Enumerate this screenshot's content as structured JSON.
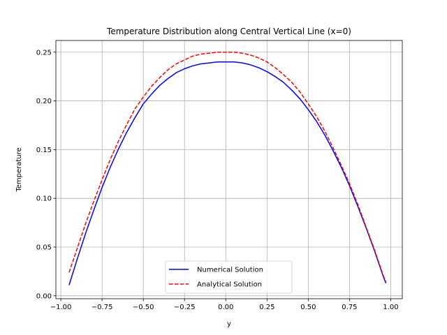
{
  "chart_data": {
    "type": "line",
    "title": "Temperature Distribution along Central Vertical Line (x=0)",
    "xlabel": "y",
    "ylabel": "Temperature",
    "xlim": [
      -1.03,
      1.07
    ],
    "ylim": [
      -0.003,
      0.262
    ],
    "xticks": [
      -1.0,
      -0.75,
      -0.5,
      -0.25,
      0.0,
      0.25,
      0.5,
      0.75,
      1.0
    ],
    "xtick_labels": [
      "−1.00",
      "−0.75",
      "−0.50",
      "−0.25",
      "0.00",
      "0.25",
      "0.50",
      "0.75",
      "1.00"
    ],
    "yticks": [
      0.0,
      0.05,
      0.1,
      0.15,
      0.2,
      0.25
    ],
    "ytick_labels": [
      "0.00",
      "0.05",
      "0.10",
      "0.15",
      "0.20",
      "0.25"
    ],
    "grid": true,
    "legend_position": "lower center",
    "series": [
      {
        "name": "Numerical Solution",
        "color": "#0000ff",
        "style": "solid",
        "x": [
          -0.95,
          -0.9,
          -0.85,
          -0.8,
          -0.75,
          -0.7,
          -0.65,
          -0.6,
          -0.55,
          -0.5,
          -0.45,
          -0.4,
          -0.35,
          -0.3,
          -0.25,
          -0.2,
          -0.15,
          -0.1,
          -0.05,
          0.0,
          0.05,
          0.1,
          0.15,
          0.2,
          0.25,
          0.3,
          0.35,
          0.4,
          0.45,
          0.5,
          0.55,
          0.6,
          0.65,
          0.7,
          0.75,
          0.8,
          0.85,
          0.9,
          0.95,
          0.97
        ],
        "y": [
          0.011,
          0.038,
          0.064,
          0.088,
          0.111,
          0.132,
          0.151,
          0.168,
          0.183,
          0.197,
          0.207,
          0.216,
          0.223,
          0.229,
          0.233,
          0.236,
          0.238,
          0.239,
          0.24,
          0.24,
          0.24,
          0.239,
          0.237,
          0.234,
          0.23,
          0.225,
          0.219,
          0.211,
          0.202,
          0.191,
          0.179,
          0.165,
          0.149,
          0.132,
          0.113,
          0.092,
          0.07,
          0.047,
          0.022,
          0.013
        ]
      },
      {
        "name": "Analytical Solution",
        "color": "#ff0000",
        "style": "dashed",
        "x": [
          -0.95,
          -0.9,
          -0.85,
          -0.8,
          -0.75,
          -0.7,
          -0.65,
          -0.6,
          -0.55,
          -0.5,
          -0.45,
          -0.4,
          -0.35,
          -0.3,
          -0.25,
          -0.2,
          -0.15,
          -0.1,
          -0.05,
          0.0,
          0.05,
          0.1,
          0.15,
          0.2,
          0.25,
          0.3,
          0.35,
          0.4,
          0.45,
          0.5,
          0.55,
          0.6,
          0.65,
          0.7,
          0.75,
          0.8,
          0.85,
          0.9,
          0.95,
          0.97
        ],
        "y": [
          0.024,
          0.049,
          0.074,
          0.097,
          0.119,
          0.14,
          0.159,
          0.176,
          0.192,
          0.204,
          0.215,
          0.224,
          0.232,
          0.238,
          0.242,
          0.246,
          0.248,
          0.249,
          0.25,
          0.25,
          0.25,
          0.249,
          0.247,
          0.244,
          0.24,
          0.234,
          0.227,
          0.219,
          0.209,
          0.197,
          0.184,
          0.169,
          0.152,
          0.134,
          0.115,
          0.094,
          0.071,
          0.048,
          0.023,
          0.014
        ]
      }
    ]
  }
}
